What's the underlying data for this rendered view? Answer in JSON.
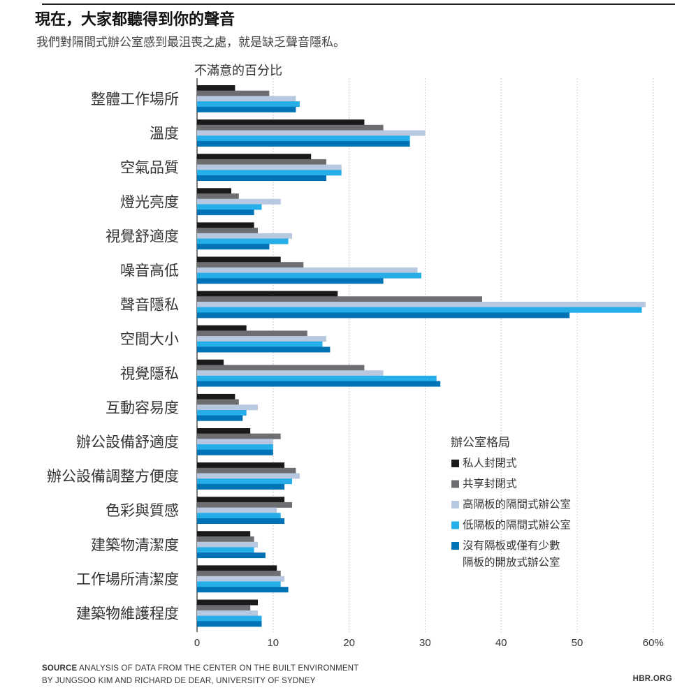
{
  "header": {
    "title": "現在，大家都聽得到你的聲音",
    "subtitle": "我們對隔間式辦公室感到最沮喪之處，就是缺乏聲音隱私。"
  },
  "footer": {
    "source_label": "SOURCE",
    "source_line1": "ANALYSIS OF DATA FROM THE CENTER ON THE BUILT ENVIRONMENT",
    "source_line2": "BY JUNGSOO KIM AND RICHARD DE DEAR, UNIVERSITY OF SYDNEY",
    "brand": "HBR.ORG"
  },
  "chart_data": {
    "type": "bar",
    "orientation": "horizontal",
    "xlabel": "不滿意的百分比",
    "xlim": [
      0,
      60
    ],
    "x_ticks": [
      0,
      10,
      20,
      30,
      40,
      50,
      60
    ],
    "x_tick_labels": [
      "0",
      "10",
      "20",
      "30",
      "40",
      "50",
      "60%"
    ],
    "grid": true,
    "legend_title": "辦公室格局",
    "legend_position": "right",
    "categories": [
      "整體工作場所",
      "溫度",
      "空氣品質",
      "燈光亮度",
      "視覺舒適度",
      "噪音高低",
      "聲音隱私",
      "空間大小",
      "視覺隱私",
      "互動容易度",
      "辦公設備舒適度",
      "辦公設備調整方便度",
      "色彩與質感",
      "建築物清潔度",
      "工作場所清潔度",
      "建築物維護程度"
    ],
    "series": [
      {
        "name": "私人封閉式",
        "color": "#1a1a1a",
        "values": [
          5,
          22,
          15,
          4.5,
          7.5,
          11,
          18.5,
          6.5,
          3.5,
          5,
          7,
          11.5,
          11.5,
          7,
          10.5,
          8
        ]
      },
      {
        "name": "共享封閉式",
        "color": "#6d6e71",
        "values": [
          9.5,
          24.5,
          17,
          5.5,
          8,
          14,
          37.5,
          14.5,
          22,
          5.5,
          11,
          13,
          12.5,
          7.5,
          11,
          7
        ]
      },
      {
        "name": "高隔板的隔間式辦公室",
        "color": "#b8c8e0",
        "values": [
          13,
          30,
          19,
          11,
          12.5,
          29,
          59,
          17,
          24.5,
          8,
          10,
          13.5,
          10.5,
          8,
          11.5,
          8
        ]
      },
      {
        "name": "低隔板的隔間式辦公室",
        "color": "#25aee8",
        "values": [
          13.5,
          28,
          19,
          8.5,
          12,
          29.5,
          58.5,
          16.5,
          31.5,
          6.5,
          10,
          12.5,
          11,
          7.5,
          11,
          8.5
        ]
      },
      {
        "name": "沒有隔板或僅有少數\n隔板的開放式辦公室",
        "color": "#0073b6",
        "values": [
          13,
          28,
          17,
          7.5,
          9.5,
          24.5,
          49,
          17.5,
          32,
          6,
          10,
          11.5,
          11.5,
          9,
          12,
          8.5
        ]
      }
    ]
  }
}
